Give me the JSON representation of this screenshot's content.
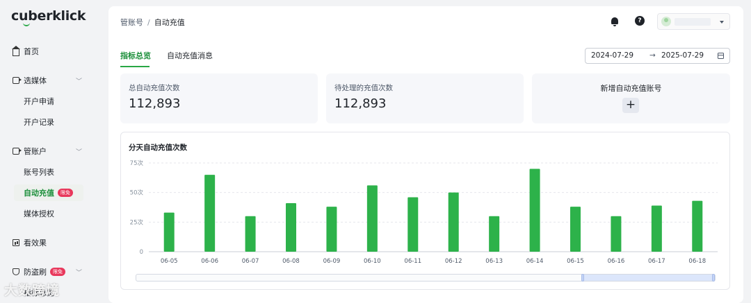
{
  "app": {
    "logo": "cuberklick"
  },
  "sidebar": {
    "home": "首页",
    "media": "选媒体",
    "media_items": [
      "开户申请",
      "开户记录"
    ],
    "accounts": "管账户",
    "account_items": [
      "账号列表",
      "自动充值",
      "媒体授权"
    ],
    "active_badge": "限免",
    "effects": "看效果",
    "anti_fraud": "防盗刷",
    "anti_fraud_badge": "限免",
    "partial_item": "指标总览"
  },
  "watermark": "大数跨境",
  "header": {
    "breadcrumb_parent": "管账号",
    "breadcrumb_sep": "/",
    "breadcrumb_current": "自动充值",
    "help_glyph": "?"
  },
  "tabs": [
    "指标总览",
    "自动充值消息"
  ],
  "date_range": {
    "start": "2024-07-29",
    "arrow": "→",
    "end": "2025-07-29"
  },
  "stats": {
    "total_label": "总自动充值次数",
    "total_value": "112,893",
    "pending_label": "待处理的充值次数",
    "pending_value": "112,893",
    "add_label": "新增自动充值账号",
    "add_glyph": "+"
  },
  "colors": {
    "accent": "#28a745",
    "bar": "#2db24a",
    "badge": "#e8375b"
  },
  "chart_data": {
    "type": "bar",
    "title": "分天自动充值次数",
    "categories": [
      "06-05",
      "06-06",
      "06-07",
      "06-08",
      "06-09",
      "06-10",
      "06-11",
      "06-12",
      "06-13",
      "06-14",
      "06-15",
      "06-16",
      "06-17",
      "06-18"
    ],
    "values": [
      33,
      65,
      30,
      41,
      38,
      56,
      46,
      50,
      30,
      70,
      38,
      30,
      39,
      43
    ],
    "y_ticks": [
      "0",
      "25次",
      "50次",
      "75次"
    ],
    "ylim": [
      0,
      75
    ],
    "grid": true,
    "legend": "none"
  }
}
